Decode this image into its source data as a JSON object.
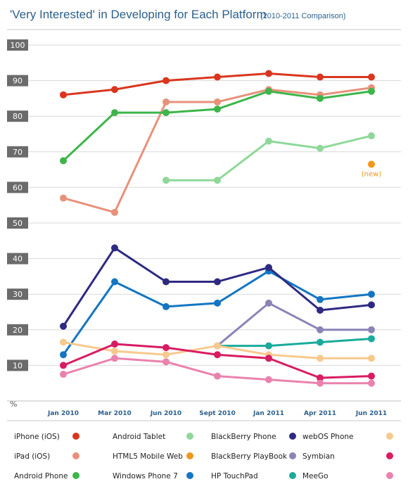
{
  "chart_data": {
    "type": "line",
    "title": "'Very Interested' in Developing for Each Platform",
    "subtitle": "(2010-2011 Comparison)",
    "xlabel": "",
    "ylabel": "%",
    "ylim": [
      0,
      100
    ],
    "yticks": [
      10,
      20,
      30,
      40,
      50,
      60,
      70,
      80,
      90,
      100
    ],
    "grid": true,
    "legend_placement": "bottom",
    "categories": [
      "Jan 2010",
      "Mar 2010",
      "Jun 2010",
      "Sept 2010",
      "Jan 2011",
      "Apr 2011",
      "Jun 2011"
    ],
    "series": [
      {
        "name": "iPhone (iOS)",
        "color": "#d9361e",
        "values": [
          86,
          87.5,
          90,
          91,
          92,
          91,
          91
        ]
      },
      {
        "name": "iPad (iOS)",
        "color": "#e8917a",
        "values": [
          57,
          53,
          84,
          84,
          87.5,
          86,
          88
        ]
      },
      {
        "name": "Android Phone",
        "color": "#3db54a",
        "values": [
          67.5,
          81,
          81,
          82,
          87,
          85,
          87
        ]
      },
      {
        "name": "Android Tablet",
        "color": "#8fd89a",
        "values": [
          null,
          null,
          62,
          62,
          73,
          71,
          74.5
        ]
      },
      {
        "name": "HTML5 Mobile Web",
        "color": "#f0961c",
        "values": [
          null,
          null,
          null,
          null,
          null,
          null,
          66.5
        ]
      },
      {
        "name": "Windows Phone 7",
        "color": "#1476c2",
        "values": [
          13,
          33.5,
          26.5,
          27.5,
          36.5,
          28.5,
          30
        ]
      },
      {
        "name": "BlackBerry Phone",
        "color": "#2e2a82",
        "values": [
          21,
          43,
          33.5,
          33.5,
          37.5,
          25.5,
          27
        ]
      },
      {
        "name": "BlackBerry PlayBook",
        "color": "#8a84b6",
        "values": [
          null,
          null,
          null,
          15.5,
          27.5,
          20,
          20
        ]
      },
      {
        "name": "HP TouchPad",
        "color": "#1aab9b",
        "values": [
          null,
          null,
          null,
          15.5,
          15.5,
          16.5,
          17.5
        ]
      },
      {
        "name": "webOS Phone",
        "color": "#f8c98e",
        "values": [
          16.5,
          14,
          13,
          15.5,
          13,
          12,
          12
        ]
      },
      {
        "name": "Symbian",
        "color": "#d81c62",
        "values": [
          10,
          16,
          15,
          13,
          12,
          6.5,
          7
        ]
      },
      {
        "name": "MeeGo",
        "color": "#ea82ae",
        "values": [
          7.5,
          12,
          11,
          7,
          6,
          5,
          5
        ]
      }
    ],
    "annotations": [
      {
        "series": "HTML5 Mobile Web",
        "x": "Jun 2011",
        "text": "(new)"
      }
    ]
  },
  "legend_rows": [
    [
      "iPhone (iOS)",
      "Android Tablet",
      "BlackBerry Phone",
      "webOS Phone"
    ],
    [
      "iPad (iOS)",
      "HTML5 Mobile Web",
      "BlackBerry PlayBook",
      "Symbian"
    ],
    [
      "Android Phone",
      "Windows Phone 7",
      "HP TouchPad",
      "MeeGo"
    ]
  ],
  "colors": {
    "title": "#2c5f8a",
    "tick_box": "#6b6b6b",
    "gridline": "#d9d9d9"
  }
}
